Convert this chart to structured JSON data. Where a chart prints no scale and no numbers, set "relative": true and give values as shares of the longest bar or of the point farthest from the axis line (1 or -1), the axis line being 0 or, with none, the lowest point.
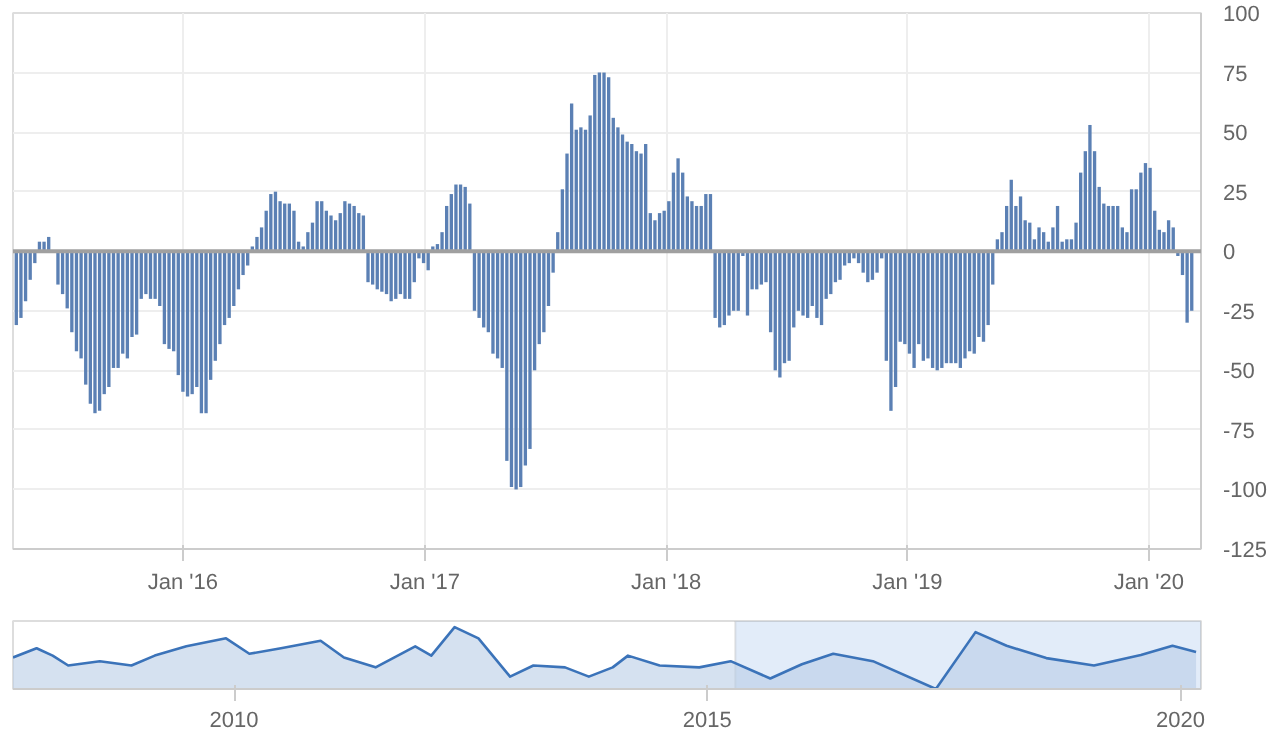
{
  "chart_data": [
    {
      "type": "bar",
      "color": "#5b80b4",
      "grid": true,
      "ylim": [
        -125,
        100
      ],
      "yticks": [
        -125,
        -100,
        -75,
        -50,
        -25,
        0,
        25,
        50,
        75,
        100
      ],
      "xlim": [
        "2015-04-19",
        "2020-03-20"
      ],
      "xticks": [
        {
          "value": "2016-01-01",
          "label": "Jan '16"
        },
        {
          "value": "2017-01-01",
          "label": "Jan '17"
        },
        {
          "value": "2018-01-01",
          "label": "Jan '18"
        },
        {
          "value": "2019-01-01",
          "label": "Jan '19"
        },
        {
          "value": "2020-01-01",
          "label": "Jan '20"
        }
      ],
      "ref_lines": [
        {
          "axis": "y",
          "value": 0,
          "color": "#a0a0a0"
        }
      ],
      "x": [
        "2015-04-24",
        "2015-05-01",
        "2015-05-08",
        "2015-05-15",
        "2015-05-22",
        "2015-05-29",
        "2015-06-05",
        "2015-06-12",
        "2015-06-19",
        "2015-06-26",
        "2015-07-03",
        "2015-07-10",
        "2015-07-17",
        "2015-07-24",
        "2015-07-31",
        "2015-08-07",
        "2015-08-14",
        "2015-08-21",
        "2015-08-28",
        "2015-09-04",
        "2015-09-11",
        "2015-09-18",
        "2015-09-25",
        "2015-10-02",
        "2015-10-09",
        "2015-10-16",
        "2015-10-23",
        "2015-10-30",
        "2015-11-06",
        "2015-11-13",
        "2015-11-20",
        "2015-11-27",
        "2015-12-04",
        "2015-12-11",
        "2015-12-18",
        "2015-12-25",
        "2016-01-01",
        "2016-01-08",
        "2016-01-15",
        "2016-01-22",
        "2016-01-29",
        "2016-02-05",
        "2016-02-12",
        "2016-02-19",
        "2016-02-26",
        "2016-03-04",
        "2016-03-11",
        "2016-03-18",
        "2016-03-25",
        "2016-04-01",
        "2016-04-08",
        "2016-04-15",
        "2016-04-22",
        "2016-04-29",
        "2016-05-06",
        "2016-05-13",
        "2016-05-20",
        "2016-05-27",
        "2016-06-03",
        "2016-06-10",
        "2016-06-17",
        "2016-06-24",
        "2016-07-01",
        "2016-07-08",
        "2016-07-15",
        "2016-07-22",
        "2016-07-29",
        "2016-08-05",
        "2016-08-12",
        "2016-08-19",
        "2016-08-26",
        "2016-09-02",
        "2016-09-09",
        "2016-09-16",
        "2016-09-23",
        "2016-09-30",
        "2016-10-07",
        "2016-10-14",
        "2016-10-21",
        "2016-10-28",
        "2016-11-04",
        "2016-11-11",
        "2016-11-18",
        "2016-11-25",
        "2016-12-02",
        "2016-12-09",
        "2016-12-16",
        "2016-12-23",
        "2016-12-30",
        "2017-01-06",
        "2017-01-13",
        "2017-01-20",
        "2017-01-27",
        "2017-02-03",
        "2017-02-10",
        "2017-02-17",
        "2017-02-24",
        "2017-03-03",
        "2017-03-10",
        "2017-03-17",
        "2017-03-24",
        "2017-03-31",
        "2017-04-07",
        "2017-04-14",
        "2017-04-21",
        "2017-04-28",
        "2017-05-05",
        "2017-05-12",
        "2017-05-19",
        "2017-05-26",
        "2017-06-02",
        "2017-06-09",
        "2017-06-16",
        "2017-06-23",
        "2017-06-30",
        "2017-07-07",
        "2017-07-14",
        "2017-07-21",
        "2017-07-28",
        "2017-08-04",
        "2017-08-11",
        "2017-08-18",
        "2017-08-25",
        "2017-09-01",
        "2017-09-08",
        "2017-09-15",
        "2017-09-22",
        "2017-09-29",
        "2017-10-06",
        "2017-10-13",
        "2017-10-20",
        "2017-10-27",
        "2017-11-03",
        "2017-11-10",
        "2017-11-17",
        "2017-11-24",
        "2017-12-01",
        "2017-12-08",
        "2017-12-15",
        "2017-12-22",
        "2017-12-29",
        "2018-01-05",
        "2018-01-12",
        "2018-01-19",
        "2018-01-26",
        "2018-02-02",
        "2018-02-09",
        "2018-02-16",
        "2018-02-23",
        "2018-03-02",
        "2018-03-09",
        "2018-03-16",
        "2018-03-23",
        "2018-03-30",
        "2018-04-06",
        "2018-04-13",
        "2018-04-20",
        "2018-04-27",
        "2018-05-04",
        "2018-05-11",
        "2018-05-18",
        "2018-05-25",
        "2018-06-01",
        "2018-06-08",
        "2018-06-15",
        "2018-06-22",
        "2018-06-29",
        "2018-07-06",
        "2018-07-13",
        "2018-07-20",
        "2018-07-27",
        "2018-08-03",
        "2018-08-10",
        "2018-08-17",
        "2018-08-24",
        "2018-08-31",
        "2018-09-07",
        "2018-09-14",
        "2018-09-21",
        "2018-09-28",
        "2018-10-05",
        "2018-10-12",
        "2018-10-19",
        "2018-10-26",
        "2018-11-02",
        "2018-11-09",
        "2018-11-16",
        "2018-11-23",
        "2018-11-30",
        "2018-12-07",
        "2018-12-14",
        "2018-12-21",
        "2018-12-28",
        "2019-01-04",
        "2019-01-11",
        "2019-01-18",
        "2019-01-25",
        "2019-02-01",
        "2019-02-08",
        "2019-02-15",
        "2019-02-22",
        "2019-03-01",
        "2019-03-08",
        "2019-03-15",
        "2019-03-22",
        "2019-03-29",
        "2019-04-05",
        "2019-04-12",
        "2019-04-19",
        "2019-04-26",
        "2019-05-03",
        "2019-05-10",
        "2019-05-17",
        "2019-05-24",
        "2019-05-31",
        "2019-06-07",
        "2019-06-14",
        "2019-06-21",
        "2019-06-28",
        "2019-07-05",
        "2019-07-12",
        "2019-07-19",
        "2019-07-26",
        "2019-08-02",
        "2019-08-09",
        "2019-08-16",
        "2019-08-23",
        "2019-08-30",
        "2019-09-06",
        "2019-09-13",
        "2019-09-20",
        "2019-09-27",
        "2019-10-04",
        "2019-10-11",
        "2019-10-18",
        "2019-10-25",
        "2019-11-01",
        "2019-11-08",
        "2019-11-15",
        "2019-11-22",
        "2019-11-29",
        "2019-12-06",
        "2019-12-13",
        "2019-12-20",
        "2019-12-27",
        "2020-01-03",
        "2020-01-10",
        "2020-01-17",
        "2020-01-24",
        "2020-01-31",
        "2020-02-07",
        "2020-02-14",
        "2020-02-21",
        "2020-02-28",
        "2020-03-06"
      ],
      "values": [
        -31,
        -28,
        -21,
        -12,
        -5,
        4,
        4,
        6,
        0,
        -14,
        -18,
        -24,
        -34,
        -42,
        -45,
        -56,
        -64,
        -68,
        -67,
        -60,
        -57,
        -49,
        -49,
        -43,
        -45,
        -36,
        -35,
        -20,
        -18,
        -20,
        -20,
        -23,
        -39,
        -41,
        -42,
        -52,
        -59,
        -61,
        -60,
        -57,
        -68,
        -68,
        -54,
        -46,
        -39,
        -31,
        -28,
        -23,
        -16,
        -10,
        -6,
        2,
        6,
        10,
        17,
        24,
        25,
        21,
        20,
        20,
        17,
        4,
        2,
        8,
        12,
        21,
        21,
        17,
        15,
        13,
        16,
        21,
        20,
        19,
        16,
        15,
        -13,
        -14,
        -16,
        -17,
        -18,
        -21,
        -20,
        -18,
        -20,
        -20,
        -13,
        -3,
        -5,
        -8,
        2,
        3,
        8,
        19,
        24,
        28,
        28,
        27,
        20,
        -25,
        -28,
        -32,
        -34,
        -43,
        -45,
        -49,
        -88,
        -99,
        -100,
        -99,
        -90,
        -83,
        -50,
        -39,
        -34,
        -23,
        -9,
        8,
        26,
        41,
        62,
        51,
        52,
        51,
        57,
        74,
        75,
        75,
        73,
        56,
        52,
        49,
        46,
        45,
        42,
        41,
        45,
        16,
        13,
        16,
        17,
        21,
        33,
        39,
        33,
        23,
        21,
        19,
        19,
        24,
        24,
        -28,
        -32,
        -31,
        -27,
        -25,
        -25,
        -2,
        -27,
        -16,
        -16,
        -14,
        -13,
        -34,
        -50,
        -53,
        -47,
        -46,
        -32,
        -25,
        -27,
        -28,
        -23,
        -28,
        -31,
        -20,
        -18,
        -13,
        -12,
        -6,
        -5,
        -3,
        -5,
        -9,
        -13,
        -12,
        -9,
        -3,
        -46,
        -67,
        -57,
        -38,
        -39,
        -43,
        -49,
        -39,
        -46,
        -45,
        -49,
        -50,
        -49,
        -47,
        -47,
        -47,
        -49,
        -45,
        -42,
        -43,
        -36,
        -38,
        -31,
        -14,
        5,
        8,
        19,
        30,
        19,
        23,
        13,
        12,
        5,
        10,
        8,
        4,
        10,
        19,
        4,
        5,
        5,
        12,
        33,
        42,
        53,
        42,
        27,
        20,
        19,
        19,
        19,
        10,
        8,
        26,
        26,
        33,
        37,
        35,
        17,
        9,
        8,
        13,
        10,
        -2,
        -10,
        -30,
        -25
      ]
    },
    {
      "type": "area",
      "relative": true,
      "color": "#b9cde6",
      "tick_labels": "x",
      "grid": false,
      "xlim": [
        "2007-09-01",
        "2020-03-20"
      ],
      "xticks": [
        {
          "value": "2010-01-01",
          "label": "2010"
        },
        {
          "value": "2015-01-01",
          "label": "2015"
        },
        {
          "value": "2020-01-01",
          "label": "2020"
        }
      ],
      "bands": [
        {
          "axis": "x",
          "from": "2015-04-19",
          "to": "2020-03-20",
          "color": "#cfe0f5"
        }
      ],
      "x": [
        "2007-09-01",
        "2007-12-01",
        "2008-02-01",
        "2008-04-01",
        "2008-08-01",
        "2008-12-01",
        "2009-03-01",
        "2009-07-01",
        "2009-12-01",
        "2010-03-01",
        "2010-07-01",
        "2010-12-01",
        "2011-03-01",
        "2011-07-01",
        "2011-12-01",
        "2012-02-01",
        "2012-05-01",
        "2012-08-01",
        "2012-12-01",
        "2013-03-01",
        "2013-07-01",
        "2013-10-01",
        "2014-01-01",
        "2014-03-01",
        "2014-07-01",
        "2014-12-01",
        "2015-04-01",
        "2015-09-01",
        "2016-01-01",
        "2016-05-01",
        "2016-10-01",
        "2017-06-01",
        "2017-11-01",
        "2018-03-01",
        "2018-08-01",
        "2019-02-01",
        "2019-08-01",
        "2019-12-01",
        "2020-03-01"
      ],
      "values": [
        0.51,
        0.66,
        0.54,
        0.38,
        0.45,
        0.38,
        0.54,
        0.69,
        0.82,
        0.57,
        0.66,
        0.78,
        0.51,
        0.35,
        0.69,
        0.54,
        1.0,
        0.82,
        0.2,
        0.38,
        0.35,
        0.2,
        0.35,
        0.54,
        0.38,
        0.35,
        0.45,
        0.17,
        0.4,
        0.57,
        0.45,
        0.0,
        0.92,
        0.7,
        0.5,
        0.38,
        0.55,
        0.7,
        0.6
      ]
    }
  ]
}
